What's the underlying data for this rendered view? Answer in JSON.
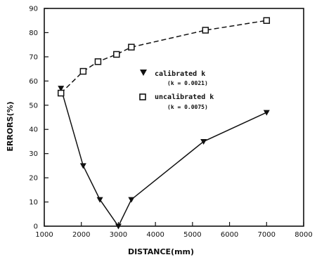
{
  "chart_data": {
    "type": "line",
    "xlabel": "DISTANCE(mm)",
    "ylabel": "ERRORS(%)",
    "xlim": [
      1000,
      8000
    ],
    "ylim": [
      0,
      90
    ],
    "xticks": [
      1000,
      2000,
      3000,
      4000,
      5000,
      6000,
      7000,
      8000
    ],
    "yticks": [
      0,
      10,
      20,
      30,
      40,
      50,
      60,
      70,
      80,
      90
    ],
    "grid": false,
    "legend_position": "center-right",
    "series": [
      {
        "name": "calibrated k",
        "sub": "(k = 0.0021)",
        "marker": "triangle-down",
        "line_style": "solid",
        "x": [
          1450,
          2050,
          2500,
          3000,
          3350,
          5300,
          7000
        ],
        "y": [
          57,
          25,
          11,
          0,
          11,
          35,
          47
        ]
      },
      {
        "name": "uncalibrated k",
        "sub": "(k = 0.0075)",
        "marker": "square-open",
        "line_style": "dashed",
        "x": [
          1450,
          2050,
          2450,
          2950,
          3350,
          5350,
          7000
        ],
        "y": [
          55,
          64,
          68,
          71,
          74,
          81,
          85
        ]
      }
    ]
  }
}
